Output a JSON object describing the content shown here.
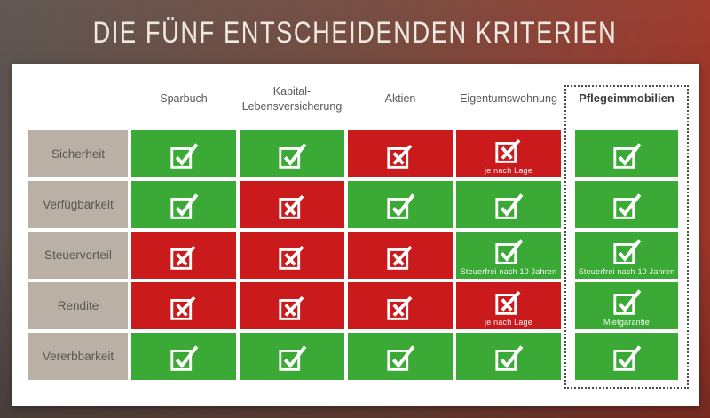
{
  "title": "DIE FÜNF ENTSCHEIDENDEN KRITERIEN",
  "colors": {
    "positive_green": "#3aa935",
    "negative_red": "#cb1a1c",
    "row_label_bg": "#bab0a5",
    "card_bg": "#ffffff",
    "title_text": "#efe9e2",
    "background_left": "#5c534e",
    "background_right": "#9d362a"
  },
  "chart_data": {
    "type": "table",
    "title": "DIE FÜNF ENTSCHEIDENDEN KRITERIEN",
    "columns": [
      "Sparbuch",
      "Kapital-\nLebensversicherung",
      "Aktien",
      "Eigentumswohnung",
      "Pflegeimmobilien"
    ],
    "highlighted_column": "Pflegeimmobilien",
    "rows": [
      "Sicherheit",
      "Verfügbarkeit",
      "Steuervorteil",
      "Rendite",
      "Vererbbarkeit"
    ],
    "cells": [
      [
        {
          "value": "yes"
        },
        {
          "value": "yes"
        },
        {
          "value": "no"
        },
        {
          "value": "no",
          "note": "je nach Lage"
        },
        {
          "value": "yes"
        }
      ],
      [
        {
          "value": "yes"
        },
        {
          "value": "no"
        },
        {
          "value": "yes"
        },
        {
          "value": "yes"
        },
        {
          "value": "yes"
        }
      ],
      [
        {
          "value": "no"
        },
        {
          "value": "no"
        },
        {
          "value": "no"
        },
        {
          "value": "yes",
          "note": "Steuerfrei nach 10 Jahren"
        },
        {
          "value": "yes",
          "note": "Steuerfrei nach 10 Jahren"
        }
      ],
      [
        {
          "value": "no"
        },
        {
          "value": "no"
        },
        {
          "value": "no"
        },
        {
          "value": "no",
          "note": "je nach Lage"
        },
        {
          "value": "yes",
          "note": "Mietgarantie"
        }
      ],
      [
        {
          "value": "yes"
        },
        {
          "value": "yes"
        },
        {
          "value": "yes"
        },
        {
          "value": "yes"
        },
        {
          "value": "yes"
        }
      ]
    ]
  }
}
